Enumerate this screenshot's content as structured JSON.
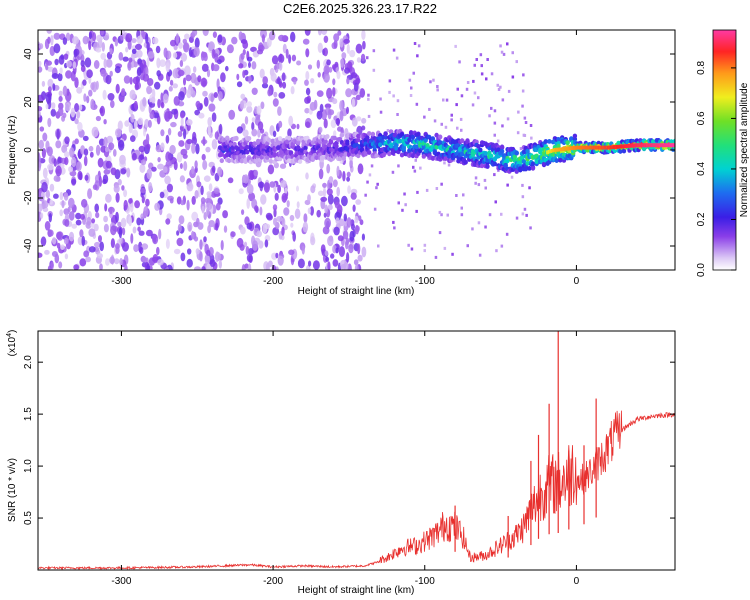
{
  "title": "C2E6.2025.326.23.17.R22",
  "chart_data": [
    {
      "type": "heatmap",
      "xlabel": "Height of straight line (km)",
      "ylabel": "Frequency (Hz)",
      "xlim": [
        -355,
        65
      ],
      "ylim": [
        -50,
        50
      ],
      "xticks": [
        -300,
        -200,
        -100,
        0
      ],
      "yticks": [
        -40,
        -20,
        0,
        20,
        40
      ],
      "colorbar": {
        "label": "Normalized spectral amplitude",
        "range": [
          0,
          0.95
        ],
        "ticks": [
          0.0,
          0.2,
          0.4,
          0.6,
          0.8
        ],
        "tick_labels": [
          "0.0",
          "0.2",
          "0.4",
          "0.6",
          "0.8"
        ]
      },
      "ridge": {
        "x": [
          -230,
          -200,
          -180,
          -160,
          -140,
          -120,
          -100,
          -80,
          -60,
          -45,
          -35,
          -25,
          -15,
          0,
          20,
          40,
          65
        ],
        "freq_center": [
          0,
          0,
          0,
          1,
          2,
          3,
          2,
          0,
          -2,
          -4,
          -4,
          -2,
          0,
          1,
          1,
          2,
          2
        ],
        "amplitude": [
          0.25,
          0.18,
          0.2,
          0.22,
          0.3,
          0.45,
          0.5,
          0.45,
          0.5,
          0.55,
          0.55,
          0.6,
          0.75,
          0.8,
          0.85,
          0.9,
          0.95
        ]
      },
      "noise_region": {
        "x_range": [
          -355,
          -140
        ],
        "freq_range": [
          -50,
          50
        ],
        "amplitude": 0.12
      }
    },
    {
      "type": "line",
      "xlabel": "Height of straight line (km)",
      "ylabel": "SNR (10 * v/v)",
      "ylabel_extra": "(x10",
      "ylabel_exp": "4",
      "color": "#e8302e",
      "xlim": [
        -355,
        65
      ],
      "ylim": [
        0,
        2.3
      ],
      "xticks": [
        -300,
        -200,
        -100,
        0
      ],
      "yticks": [
        0.5,
        1.0,
        1.5,
        2.0
      ],
      "ytick_labels": [
        "0.5",
        "1.0",
        "1.5",
        "2.0"
      ],
      "x": [
        -355,
        -300,
        -250,
        -215,
        -200,
        -180,
        -160,
        -140,
        -125,
        -115,
        -105,
        -98,
        -92,
        -86,
        -80,
        -75,
        -70,
        -60,
        -50,
        -40,
        -35,
        -30,
        -25,
        -20,
        -15,
        -10,
        -5,
        0,
        5,
        10,
        15,
        20,
        25,
        30,
        35,
        40,
        50,
        65
      ],
      "y": [
        0.02,
        0.02,
        0.03,
        0.05,
        0.03,
        0.04,
        0.03,
        0.04,
        0.1,
        0.18,
        0.2,
        0.25,
        0.3,
        0.38,
        0.35,
        0.28,
        0.1,
        0.12,
        0.2,
        0.28,
        0.35,
        0.48,
        0.6,
        0.68,
        0.7,
        0.72,
        0.78,
        0.85,
        0.88,
        0.95,
        1.05,
        1.15,
        1.28,
        1.35,
        1.4,
        1.45,
        1.48,
        1.5
      ],
      "spikes": [
        {
          "x": -80,
          "y": 0.62
        },
        {
          "x": -45,
          "y": 0.52
        },
        {
          "x": -30,
          "y": 1.05
        },
        {
          "x": -25,
          "y": 1.3
        },
        {
          "x": -18,
          "y": 1.6
        },
        {
          "x": -12,
          "y": 2.3
        },
        {
          "x": -5,
          "y": 1.15
        },
        {
          "x": 5,
          "y": 1.2
        },
        {
          "x": 13,
          "y": 1.65
        }
      ]
    }
  ]
}
